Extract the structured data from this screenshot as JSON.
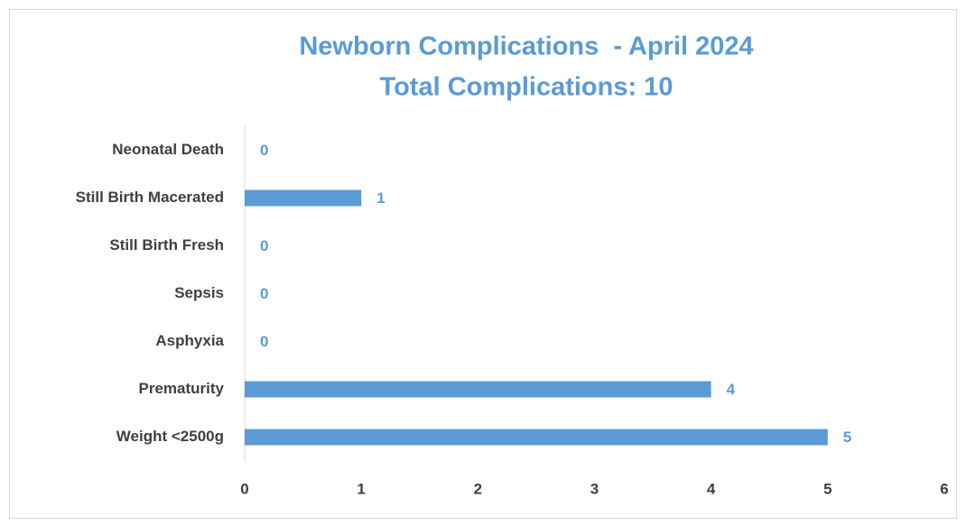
{
  "chart_data": {
    "type": "bar",
    "orientation": "horizontal",
    "title": "Newborn Complications  - April 2024",
    "subtitle": "Total Complications: 10",
    "categories": [
      "Neonatal Death",
      "Still Birth Macerated",
      "Still Birth Fresh",
      "Sepsis",
      "Asphyxia",
      "Prematurity",
      "Weight <2500g"
    ],
    "values": [
      0,
      1,
      0,
      0,
      0,
      4,
      5
    ],
    "color": "#5b9bd5",
    "xlim": [
      0,
      6
    ],
    "xticks": [
      0,
      1,
      2,
      3,
      4,
      5,
      6
    ],
    "grid": false
  }
}
